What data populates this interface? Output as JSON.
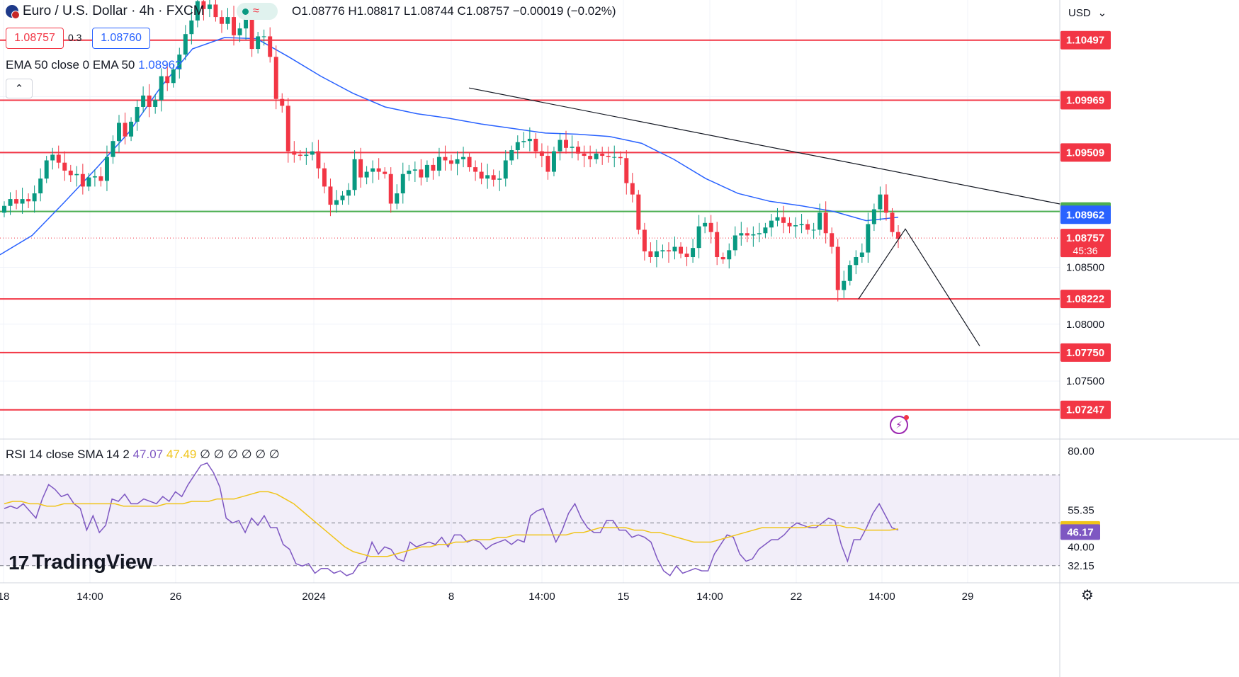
{
  "header": {
    "symbol_title": "Euro / U.S. Dollar · 4h · FXCM",
    "status_icon": "market-open-dot",
    "ohlc_text": "O1.08776  H1.08817  L1.08744  C1.08757  −0.00019 (−0.02%)"
  },
  "trade": {
    "sell_price": "1.08757",
    "spread": "0.3",
    "buy_price": "1.08760"
  },
  "indicators": {
    "ema_label": "EMA 50 close 0 EMA 50",
    "ema_value": "1.08962",
    "rsi_label": "RSI 14 close SMA 14 2",
    "rsi_value": "47.07",
    "rsi_sma_value": "47.49",
    "rsi_extra": "∅ ∅ ∅ ∅ ∅ ∅"
  },
  "brand": {
    "name": "TradingView"
  },
  "toolbar": {
    "currency": "USD"
  },
  "colors": {
    "up": "#089981",
    "down": "#f23645",
    "ema": "#2962ff",
    "rsi": "#7e57c2",
    "rsi_sma": "#f0c419",
    "support_line": "#4caf50"
  },
  "chart_data": [
    {
      "type": "candlestick",
      "title": "Euro / U.S. Dollar · 4h · FXCM",
      "ylim": [
        1.0699,
        1.1085
      ],
      "y_ticks": [
        "1.08500",
        "1.08000",
        "1.07500"
      ],
      "x_ticks": [
        "18",
        "14:00",
        "26",
        "2024",
        "8",
        "14:00",
        "15",
        "14:00",
        "22",
        "14:00",
        "29"
      ],
      "horizontal_levels_red": [
        1.10497,
        1.09969,
        1.09509,
        1.08222,
        1.0775,
        1.07247
      ],
      "horizontal_level_green": 1.08991,
      "last_price": 1.08757,
      "countdown": "45:36",
      "ema_50_last": 1.08962,
      "ema_50_path": [
        1.0861,
        1.0878,
        1.0907,
        1.0937,
        1.0968,
        1.1008,
        1.1042,
        1.1052,
        1.1051,
        1.1035,
        1.1018,
        1.1003,
        1.0991,
        1.0985,
        1.0981,
        1.0976,
        1.0972,
        1.0968,
        1.0967,
        1.0965,
        1.0959,
        1.0945,
        1.0928,
        1.0915,
        1.0908,
        1.0904,
        1.0899,
        1.0891,
        1.0894
      ],
      "trendline_desc": [
        [
          1.10077
        ],
        [
          1.09057
        ]
      ],
      "candles": [
        [
          1.0898,
          1.0904
        ],
        [
          1.0904,
          1.091
        ],
        [
          1.091,
          1.0906
        ],
        [
          1.0906,
          1.091
        ],
        [
          1.091,
          1.0908
        ],
        [
          1.0908,
          1.0915
        ],
        [
          1.0915,
          1.0928
        ],
        [
          1.0928,
          1.0944
        ],
        [
          1.0944,
          1.0949
        ],
        [
          1.0949,
          1.0942
        ],
        [
          1.0942,
          1.0935
        ],
        [
          1.0935,
          1.0931
        ],
        [
          1.0931,
          1.0932
        ],
        [
          1.0932,
          1.0921
        ],
        [
          1.0921,
          1.0929
        ],
        [
          1.0929,
          1.093
        ],
        [
          1.093,
          1.0926
        ],
        [
          1.0926,
          1.0947
        ],
        [
          1.0947,
          1.0961
        ],
        [
          1.0961,
          1.0977
        ],
        [
          1.0977,
          1.0965
        ],
        [
          1.0965,
          1.0978
        ],
        [
          1.0978,
          1.0991
        ],
        [
          1.0991,
          1.1001
        ],
        [
          1.1001,
          1.0991
        ],
        [
          1.0991,
          1.0997
        ],
        [
          1.0997,
          1.1018
        ],
        [
          1.1018,
          1.1012
        ],
        [
          1.1012,
          1.1024
        ],
        [
          1.1024,
          1.1037
        ],
        [
          1.1037,
          1.1055
        ],
        [
          1.1055,
          1.1067
        ],
        [
          1.1067,
          1.1084
        ],
        [
          1.1084,
          1.1077
        ],
        [
          1.1077,
          1.1081
        ],
        [
          1.1081,
          1.107
        ],
        [
          1.107,
          1.1064
        ],
        [
          1.1064,
          1.107
        ],
        [
          1.107,
          1.1054
        ],
        [
          1.1054,
          1.106
        ],
        [
          1.106,
          1.1069
        ],
        [
          1.1069,
          1.1042
        ],
        [
          1.1042,
          1.1053
        ],
        [
          1.1053,
          1.1053
        ],
        [
          1.1053,
          1.1035
        ],
        [
          1.1035,
          1.0998
        ],
        [
          1.0998,
          1.0992
        ],
        [
          1.0992,
          1.0952
        ],
        [
          1.0952,
          1.0949
        ],
        [
          1.0949,
          1.0948
        ],
        [
          1.0948,
          1.0949
        ],
        [
          1.0949,
          1.0952
        ],
        [
          1.0952,
          1.0937
        ],
        [
          1.0937,
          1.0921
        ],
        [
          1.0921,
          1.0905
        ],
        [
          1.0905,
          1.0909
        ],
        [
          1.0909,
          1.0913
        ],
        [
          1.0913,
          1.0918
        ],
        [
          1.0918,
          1.0945
        ],
        [
          1.0945,
          1.0929
        ],
        [
          1.0929,
          1.0934
        ],
        [
          1.0934,
          1.0937
        ],
        [
          1.0937,
          1.0934
        ],
        [
          1.0934,
          1.0932
        ],
        [
          1.0932,
          1.0906
        ],
        [
          1.0906,
          1.0915
        ],
        [
          1.0915,
          1.0932
        ],
        [
          1.0932,
          1.0935
        ],
        [
          1.0935,
          1.0936
        ],
        [
          1.0936,
          1.0929
        ],
        [
          1.0929,
          1.094
        ],
        [
          1.094,
          1.0935
        ],
        [
          1.0935,
          1.0947
        ],
        [
          1.0947,
          1.0944
        ],
        [
          1.0944,
          1.0941
        ],
        [
          1.0941,
          1.0945
        ],
        [
          1.0945,
          1.0947
        ],
        [
          1.0947,
          1.0938
        ],
        [
          1.0938,
          1.0934
        ],
        [
          1.0934,
          1.0928
        ],
        [
          1.0928,
          1.0931
        ],
        [
          1.0931,
          1.0927
        ],
        [
          1.0927,
          1.0928
        ],
        [
          1.0928,
          1.0944
        ],
        [
          1.0944,
          1.0953
        ],
        [
          1.0953,
          1.096
        ],
        [
          1.096,
          1.0961
        ],
        [
          1.0961,
          1.0963
        ],
        [
          1.0963,
          1.0952
        ],
        [
          1.0952,
          1.0948
        ],
        [
          1.0948,
          1.0934
        ],
        [
          1.0934,
          1.0952
        ],
        [
          1.0952,
          1.0962
        ],
        [
          1.0962,
          1.0955
        ],
        [
          1.0955,
          1.0956
        ],
        [
          1.0956,
          1.095
        ],
        [
          1.095,
          1.0948
        ],
        [
          1.0948,
          1.0945
        ],
        [
          1.0945,
          1.095
        ],
        [
          1.095,
          1.0948
        ],
        [
          1.0948,
          1.0947
        ],
        [
          1.0947,
          1.0947
        ],
        [
          1.0947,
          1.0946
        ],
        [
          1.0946,
          1.0924
        ],
        [
          1.0924,
          1.0914
        ],
        [
          1.0914,
          1.0883
        ],
        [
          1.0883,
          1.0864
        ],
        [
          1.0864,
          1.0859
        ],
        [
          1.0859,
          1.0864
        ],
        [
          1.0864,
          1.0865
        ],
        [
          1.0865,
          1.0864
        ],
        [
          1.0864,
          1.0868
        ],
        [
          1.0868,
          1.0862
        ],
        [
          1.0862,
          1.0859
        ],
        [
          1.0859,
          1.0867
        ],
        [
          1.0867,
          1.0886
        ],
        [
          1.0886,
          1.0889
        ],
        [
          1.0889,
          1.0881
        ],
        [
          1.0881,
          1.0859
        ],
        [
          1.0859,
          1.0857
        ],
        [
          1.0857,
          1.0865
        ],
        [
          1.0865,
          1.0878
        ],
        [
          1.0878,
          1.088
        ],
        [
          1.088,
          1.0878
        ],
        [
          1.0878,
          1.0879
        ],
        [
          1.0879,
          1.088
        ],
        [
          1.088,
          1.0885
        ],
        [
          1.0885,
          1.0891
        ],
        [
          1.0891,
          1.0894
        ],
        [
          1.0894,
          1.0889
        ],
        [
          1.0889,
          1.0886
        ],
        [
          1.0886,
          1.0887
        ],
        [
          1.0887,
          1.0888
        ],
        [
          1.0888,
          1.0883
        ],
        [
          1.0883,
          1.0883
        ],
        [
          1.0883,
          1.0898
        ],
        [
          1.0898,
          1.088
        ],
        [
          1.088,
          1.0868
        ],
        [
          1.0868,
          1.083
        ],
        [
          1.083,
          1.0838
        ],
        [
          1.0838,
          1.0852
        ],
        [
          1.0852,
          1.0859
        ],
        [
          1.0859,
          1.0863
        ],
        [
          1.0863,
          1.0888
        ],
        [
          1.0888,
          1.0901
        ],
        [
          1.0901,
          1.0914
        ],
        [
          1.0914,
          1.0898
        ],
        [
          1.0898,
          1.0881
        ],
        [
          1.0881,
          1.0875
        ]
      ],
      "projection_path": [
        [
          1.08222
        ],
        [
          1.08837
        ],
        [
          1.07808
        ]
      ]
    },
    {
      "type": "line",
      "title": "RSI 14 close SMA 14 2",
      "ylim": [
        25,
        85
      ],
      "y_ticks": [
        "80.00",
        "40.00"
      ],
      "highlighted_levels": [
        55.35,
        47.49,
        47.07,
        32.15
      ],
      "band": [
        32.15,
        70
      ],
      "series": [
        {
          "name": "RSI",
          "color": "#7e57c2",
          "values": [
            56,
            57,
            56,
            58,
            55,
            52,
            60,
            66,
            64,
            61,
            62,
            58,
            56,
            47,
            53,
            46,
            49,
            60,
            59,
            62,
            58,
            58,
            60,
            59,
            58,
            61,
            59,
            63,
            61,
            66,
            70,
            74,
            75,
            71,
            65,
            52,
            50,
            51,
            46,
            52,
            49,
            53,
            48,
            48,
            41,
            39,
            33,
            32,
            33,
            29,
            31,
            31,
            29,
            30,
            28,
            29,
            33,
            34,
            42,
            37,
            40,
            39,
            35,
            34,
            42,
            40,
            41,
            42,
            41,
            44,
            40,
            45,
            45,
            42,
            43,
            42,
            39,
            41,
            42,
            43,
            41,
            43,
            42,
            53,
            55,
            56,
            49,
            42,
            47,
            54,
            58,
            52,
            48,
            46,
            46,
            51,
            51,
            47,
            47,
            44,
            45,
            44,
            42,
            35,
            30,
            28,
            32,
            29,
            30,
            31,
            30,
            30,
            37,
            41,
            45,
            44,
            37,
            34,
            35,
            39,
            41,
            43,
            43,
            45,
            48,
            50,
            49,
            48,
            48,
            50,
            52,
            51,
            41,
            34,
            43,
            43,
            48,
            54,
            58,
            53,
            48,
            47
          ]
        },
        {
          "name": "SMA",
          "color": "#f0c419",
          "values": [
            58,
            59,
            59,
            58,
            58,
            57,
            57,
            58,
            58,
            58,
            58,
            58,
            58,
            58,
            57,
            57,
            57,
            57,
            57,
            58,
            58,
            58,
            59,
            59,
            59,
            60,
            60,
            60,
            61,
            62,
            63,
            63,
            62,
            60,
            58,
            55,
            52,
            49,
            46,
            43,
            40,
            38,
            37,
            36,
            36,
            36,
            37,
            38,
            39,
            40,
            40,
            41,
            41,
            42,
            42,
            43,
            43,
            43,
            44,
            44,
            45,
            45,
            45,
            45,
            45,
            45,
            45,
            46,
            46,
            47,
            48,
            48,
            48,
            48,
            47,
            47,
            46,
            46,
            45,
            44,
            43,
            42,
            42,
            42,
            43,
            44,
            45,
            46,
            47,
            48,
            48,
            48,
            48,
            48,
            48,
            49,
            49,
            49,
            49,
            48,
            48,
            47,
            47,
            47,
            47,
            47.49
          ]
        }
      ]
    }
  ]
}
